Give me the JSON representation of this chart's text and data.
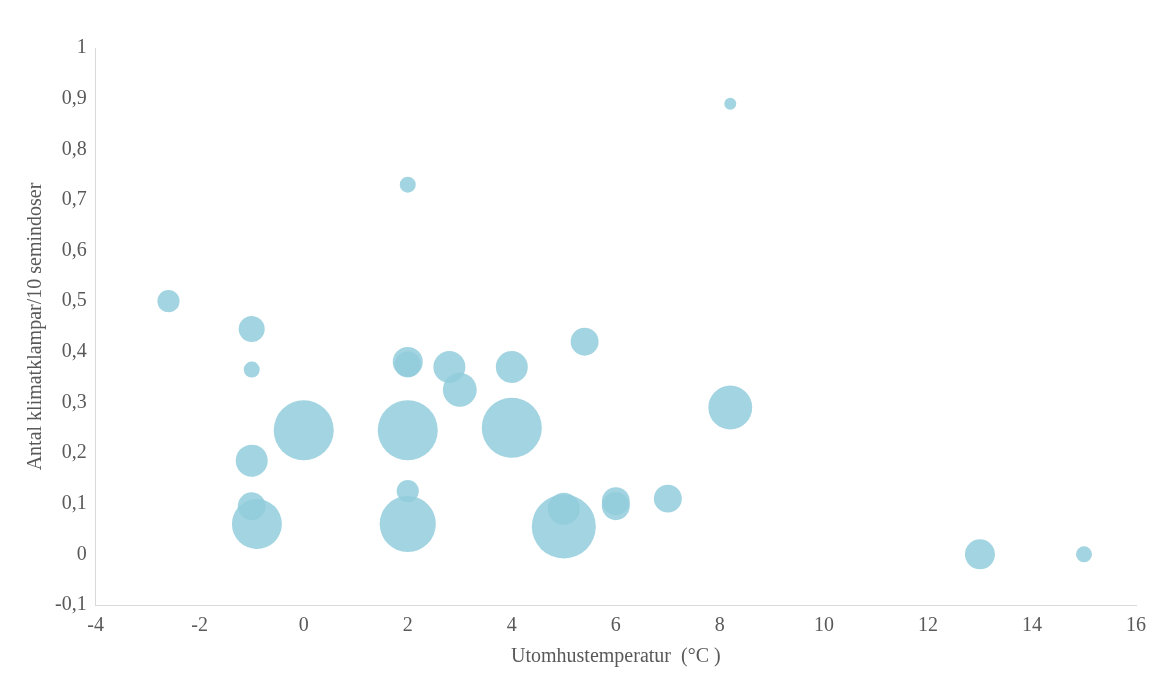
{
  "chart_data": {
    "type": "bubble",
    "xlabel": "Utomhustemperatur  (°C )",
    "ylabel": "Antal klimatklampar/10 semindoser",
    "x": [
      -2.6,
      -1,
      -1,
      -1,
      -1,
      -0.9,
      0,
      2,
      2,
      2,
      2,
      2,
      2,
      2.8,
      3,
      4,
      4,
      5,
      5,
      5.4,
      6,
      6,
      7,
      8.2,
      8.2,
      13,
      15
    ],
    "values": [
      0.5,
      0.445,
      0.365,
      0.185,
      0.095,
      0.06,
      0.245,
      0.73,
      0.38,
      0.375,
      0.245,
      0.125,
      0.06,
      0.37,
      0.325,
      0.37,
      0.25,
      0.09,
      0.055,
      0.42,
      0.105,
      0.095,
      0.11,
      0.89,
      0.29,
      0,
      0
    ],
    "sizes": [
      0.12,
      0.165,
      0.0625,
      0.25,
      0.19,
      0.61,
      0.88,
      0.0625,
      0.22,
      0.165,
      0.88,
      0.12,
      0.77,
      0.25,
      0.28,
      0.25,
      0.88,
      0.25,
      1,
      0.19,
      0.19,
      0.19,
      0.19,
      0.035,
      0.47,
      0.22,
      0.0625
    ],
    "color": "#92cddc",
    "xlim": [
      -4,
      16
    ],
    "xticks": [
      -4,
      -2,
      0,
      2,
      4,
      6,
      8,
      10,
      12,
      14,
      16
    ],
    "ylim": [
      -0.1,
      1
    ],
    "yticks": [
      {
        "value": -0.1,
        "label": "-0,1"
      },
      0,
      {
        "value": 0.1,
        "label": "0,1"
      },
      {
        "value": 0.2,
        "label": "0,2"
      },
      {
        "value": 0.3,
        "label": "0,3"
      },
      {
        "value": 0.4,
        "label": "0,4"
      },
      {
        "value": 0.5,
        "label": "0,5"
      },
      {
        "value": 0.6,
        "label": "0,6"
      },
      {
        "value": 0.7,
        "label": "0,7"
      },
      {
        "value": 0.8,
        "label": "0,8"
      },
      {
        "value": 0.9,
        "label": "0,9"
      },
      1
    ],
    "grid": false,
    "legend": false
  }
}
